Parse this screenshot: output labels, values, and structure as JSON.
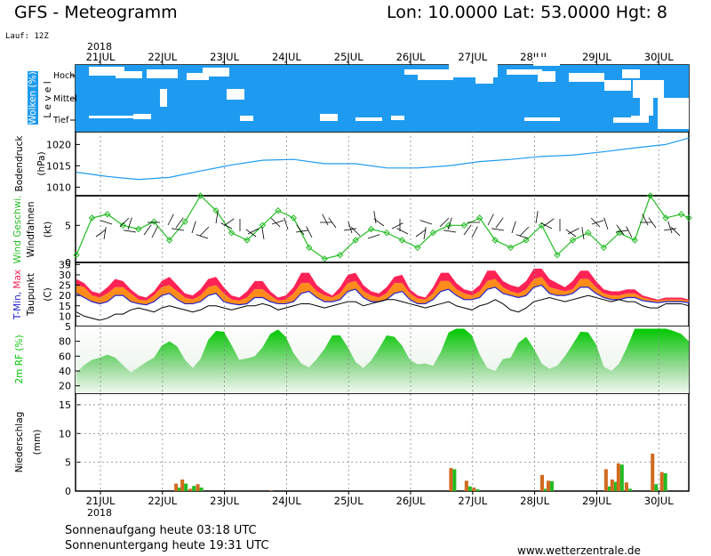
{
  "header": {
    "title": "GFS - Meteogramm",
    "coords": "Lon: 10.0000 Lat: 53.0000 Hgt: 8",
    "run": "Lauf: 12Z",
    "year": "2018"
  },
  "footer": {
    "sunrise": "Sonnenaufgang heute 03:18 UTC",
    "sunset": "Sonnenuntergang heute 19:31 UTC",
    "source": "www.wetterzentrale.de"
  },
  "colors": {
    "cloud": "#1e9bf0",
    "pressure": "#1e9bf0",
    "wind": "#22bb22",
    "temp_max": "#ff2255",
    "temp_mid": "#ff8c1a",
    "temp_min": "#2222cc",
    "dewpoint": "#000000",
    "humidity": "#00c800",
    "precip_a": "#d2691e",
    "precip_b": "#22bb22"
  },
  "chart_data": [
    {
      "panel": "clouds",
      "type": "heatmap",
      "ylabel": "Wolken (%)",
      "ylabel2": "L e v e l",
      "levels": [
        "Hoch",
        "Mittel",
        "Tief"
      ],
      "description_values": "cloud cover largely 100% at all levels; scattered clear gaps"
    },
    {
      "panel": "pressure",
      "type": "line",
      "ylabel": "Bodendruck",
      "unit": "(hPa)",
      "yticks": [
        1010,
        1015,
        1020
      ],
      "ylim": [
        1008,
        1023
      ],
      "x_days": [
        0,
        0.5,
        1,
        1.5,
        2,
        2.5,
        3,
        3.5,
        4,
        4.5,
        5,
        5.5,
        6,
        6.5,
        7,
        7.5,
        8,
        8.5,
        9,
        9.5,
        10
      ],
      "values": [
        1013.5,
        1012.5,
        1011.8,
        1012.3,
        1013.8,
        1015.2,
        1016.3,
        1016.5,
        1015.5,
        1015.5,
        1014.5,
        1014.5,
        1015,
        1016,
        1016.5,
        1017.2,
        1017.5,
        1018.3,
        1019.2,
        1020,
        1021.5
      ]
    },
    {
      "panel": "wind",
      "type": "line",
      "ylabel": "Wind Geschwi.",
      "ylabel2": "Windfahnen",
      "unit": "(kt)",
      "yticks": [
        0,
        5
      ],
      "ylim": [
        0,
        9
      ],
      "x_days": [
        0,
        0.25,
        0.5,
        0.75,
        1,
        1.25,
        1.5,
        1.75,
        2,
        2.25,
        2.5,
        2.75,
        3,
        3.25,
        3.5,
        3.75,
        4,
        4.25,
        4.5,
        4.75,
        5,
        5.25,
        5.5,
        5.75,
        6,
        6.25,
        6.5,
        6.75,
        7,
        7.25,
        7.5,
        7.75,
        8,
        8.25,
        8.5,
        8.75,
        9,
        9.25,
        9.5,
        9.75,
        10
      ],
      "values": [
        1,
        6,
        6.5,
        5,
        4.5,
        5.5,
        3,
        5.5,
        9,
        7,
        4,
        3,
        5,
        7,
        6,
        2,
        0.5,
        1,
        3,
        4.5,
        4,
        3,
        2,
        4,
        5,
        5,
        6,
        3,
        2,
        3,
        5,
        1,
        3,
        4,
        2,
        4,
        3,
        9,
        6,
        6.5,
        6
      ]
    },
    {
      "panel": "temperature",
      "type": "area",
      "ylabel": "T-Min, Max",
      "ylabel2": "Taupunkt",
      "unit": "(C)",
      "yticks": [
        5,
        10,
        15,
        20,
        25,
        30,
        35
      ],
      "ylim": [
        5,
        36
      ],
      "x_days": [
        0,
        0.125,
        0.25,
        0.375,
        0.5,
        0.625,
        0.75,
        0.875,
        1,
        1.125,
        1.25,
        1.375,
        1.5,
        1.625,
        1.75,
        1.875,
        2,
        2.125,
        2.25,
        2.375,
        2.5,
        2.625,
        2.75,
        2.875,
        3,
        3.125,
        3.25,
        3.375,
        3.5,
        3.625,
        3.75,
        3.875,
        4,
        4.125,
        4.25,
        4.375,
        4.5,
        4.625,
        4.75,
        4.875,
        5,
        5.125,
        5.25,
        5.375,
        5.5,
        5.625,
        5.75,
        5.875,
        6,
        6.125,
        6.25,
        6.375,
        6.5,
        6.625,
        6.75,
        6.875,
        7,
        7.125,
        7.25,
        7.375,
        7.5,
        7.625,
        7.75,
        7.875,
        8,
        8.125,
        8.25,
        8.375,
        8.5,
        8.625,
        8.75,
        8.875,
        9,
        9.125,
        9.25,
        9.375,
        9.5,
        9.625,
        9.75,
        9.875,
        10
      ],
      "max": [
        28,
        26,
        22,
        21,
        24,
        28,
        27,
        23,
        20,
        19,
        22,
        27,
        29,
        25,
        21,
        20,
        23,
        28,
        29,
        24,
        20,
        19,
        22,
        27,
        27,
        22,
        19,
        20,
        24,
        31,
        31,
        25,
        22,
        20,
        24,
        30,
        31,
        25,
        22,
        21,
        24,
        29,
        30,
        23,
        20,
        19,
        24,
        31,
        31,
        26,
        23,
        22,
        25,
        32,
        32,
        27,
        25,
        24,
        27,
        33,
        33,
        28,
        26,
        24,
        27,
        32,
        32,
        27,
        23,
        22,
        22,
        23,
        23,
        20,
        19,
        18,
        19,
        19,
        19,
        18,
        23
      ],
      "mid": [
        25,
        24,
        20,
        19,
        21,
        24,
        24,
        21,
        18,
        17.5,
        20,
        24,
        25,
        22,
        19,
        18,
        20,
        24,
        25,
        21,
        18,
        17.5,
        19,
        23,
        23,
        20,
        17.5,
        18,
        21,
        26,
        26,
        22,
        20,
        19,
        21,
        26,
        27,
        22,
        20,
        19,
        21,
        26,
        26,
        21,
        18.5,
        18,
        21,
        27,
        27,
        23,
        21,
        20,
        22,
        27,
        28,
        24,
        22,
        21,
        23,
        28,
        29,
        24,
        23,
        22,
        23,
        28,
        28,
        24,
        21,
        20,
        20,
        21,
        21,
        19,
        18,
        17.5,
        18,
        18,
        18,
        17.5,
        20
      ],
      "min": [
        21,
        19,
        17,
        16,
        17,
        20,
        20,
        17,
        16,
        15.5,
        17,
        20,
        21,
        18,
        16,
        16,
        17,
        20,
        21,
        17,
        16,
        15.5,
        16,
        19,
        19,
        17,
        16,
        16,
        17,
        21,
        22,
        19,
        17,
        17,
        18,
        22,
        23,
        19,
        17,
        17,
        18,
        21,
        22,
        18,
        16,
        16,
        18,
        22,
        23,
        20,
        18,
        18,
        19,
        23,
        24,
        21,
        20,
        19,
        20,
        24,
        25,
        21,
        20,
        20,
        21,
        24,
        24,
        21,
        19,
        18,
        18,
        19,
        19,
        17.5,
        17,
        16.5,
        17,
        17,
        17,
        16.5,
        17
      ],
      "dewpoint": [
        12,
        10,
        9,
        8,
        9,
        11,
        11,
        13,
        14,
        13,
        12,
        14,
        15,
        14,
        13,
        12,
        13,
        15,
        15,
        14,
        13,
        14,
        15,
        15,
        16,
        15,
        13,
        14,
        15,
        16,
        16,
        15,
        14,
        15,
        16,
        17,
        17,
        15,
        16,
        17,
        18,
        18,
        17,
        16,
        15,
        14,
        15,
        16,
        17,
        15,
        14,
        13,
        15,
        16,
        18,
        16,
        13,
        12,
        14,
        17,
        18,
        19,
        18,
        17,
        18,
        19,
        20,
        19,
        18,
        17,
        18,
        17,
        17,
        15,
        14,
        14,
        16,
        16,
        16,
        15,
        16
      ]
    },
    {
      "panel": "humidity",
      "type": "area",
      "ylabel": "2m RF (%)",
      "yticks": [
        20,
        40,
        60,
        80
      ],
      "ylim": [
        10,
        100
      ],
      "x_days": [
        0,
        0.125,
        0.25,
        0.375,
        0.5,
        0.625,
        0.75,
        0.875,
        1,
        1.125,
        1.25,
        1.375,
        1.5,
        1.625,
        1.75,
        1.875,
        2,
        2.125,
        2.25,
        2.375,
        2.5,
        2.625,
        2.75,
        2.875,
        3,
        3.125,
        3.25,
        3.375,
        3.5,
        3.625,
        3.75,
        3.875,
        4,
        4.125,
        4.25,
        4.375,
        4.5,
        4.625,
        4.75,
        4.875,
        5,
        5.125,
        5.25,
        5.375,
        5.5,
        5.625,
        5.75,
        5.875,
        6,
        6.125,
        6.25,
        6.375,
        6.5,
        6.625,
        6.75,
        6.875,
        7,
        7.125,
        7.25,
        7.375,
        7.5,
        7.625,
        7.75,
        7.875,
        8,
        8.125,
        8.25,
        8.375,
        8.5,
        8.625,
        8.75,
        8.875,
        9,
        9.125,
        9.25,
        9.375,
        9.5,
        9.625,
        9.75,
        9.875,
        10
      ],
      "values": [
        38,
        48,
        55,
        58,
        62,
        58,
        48,
        38,
        45,
        52,
        58,
        74,
        80,
        73,
        55,
        44,
        56,
        82,
        94,
        93,
        75,
        55,
        57,
        60,
        72,
        90,
        96,
        86,
        64,
        50,
        45,
        56,
        70,
        88,
        88,
        72,
        52,
        44,
        54,
        70,
        88,
        86,
        74,
        55,
        49,
        50,
        47,
        66,
        92,
        97,
        97,
        88,
        62,
        44,
        40,
        56,
        58,
        78,
        86,
        70,
        50,
        43,
        47,
        60,
        76,
        93,
        92,
        76,
        46,
        40,
        50,
        72,
        97,
        97,
        97,
        97,
        97,
        94,
        90,
        80,
        65
      ]
    },
    {
      "panel": "precipitation",
      "type": "bar",
      "ylabel": "Niederschlag",
      "unit": "(mm)",
      "yticks": [
        0,
        5,
        10,
        15
      ],
      "ylim": [
        0,
        17
      ],
      "x_days": [
        1.22,
        1.32,
        1.45,
        1.57,
        2.75,
        5.65,
        5.9,
        6.02,
        7.12,
        7.22,
        8.15,
        8.25,
        8.35,
        8.48,
        8.9,
        9.05
      ],
      "values_a": [
        1.3,
        2,
        0.4,
        1.2,
        0.1,
        4,
        1.8,
        0.6,
        2.8,
        1.8,
        3.8,
        2,
        4.8,
        1.5,
        6.5,
        3.3
      ],
      "values_b": [
        0.6,
        1.3,
        0.9,
        0.6,
        0,
        3.8,
        0.8,
        0.3,
        0.4,
        1.7,
        0.8,
        1.6,
        4.6,
        0.4,
        1.2,
        3.1
      ]
    },
    {
      "panel": "time_axis",
      "type": "table",
      "day_labels": [
        "21JUL",
        "22JUL",
        "23JUL",
        "24JUL",
        "25JUL",
        "26JUL",
        "27JUL",
        "28JUL",
        "29JUL",
        "30JUL"
      ]
    }
  ]
}
